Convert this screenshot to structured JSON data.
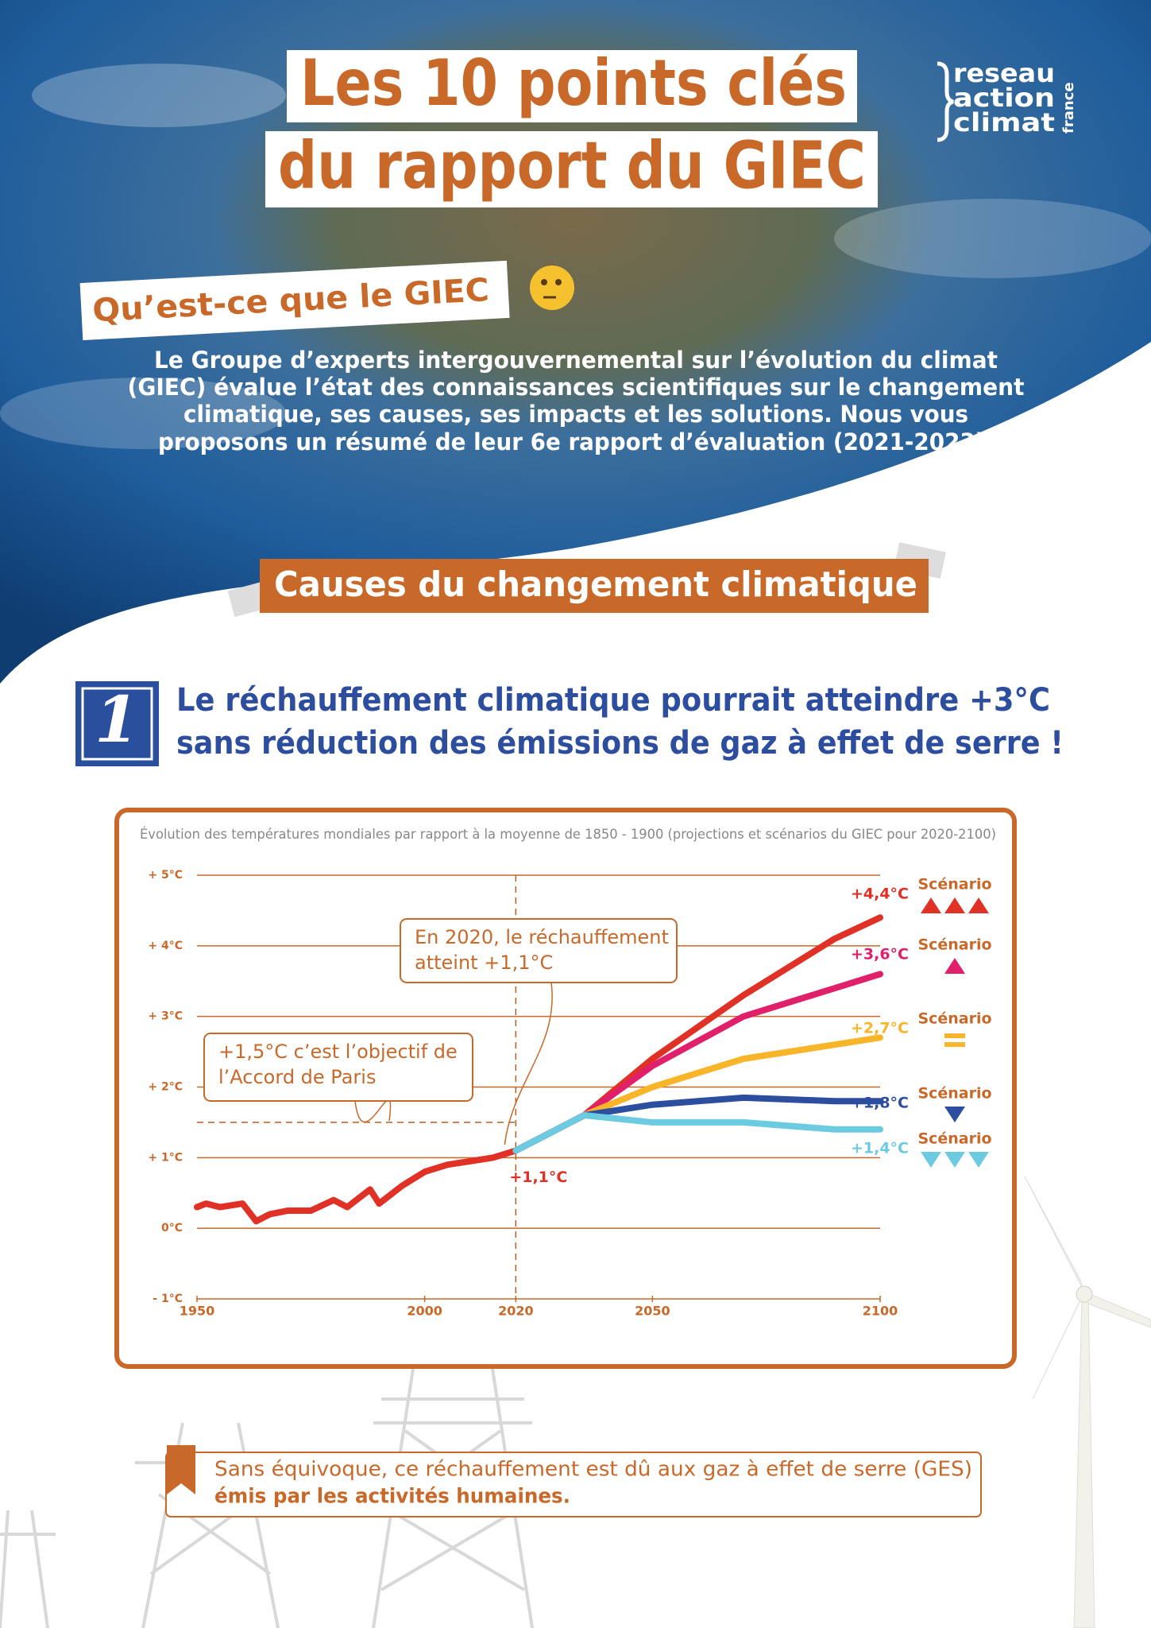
{
  "header": {
    "title_lines": [
      "Les 10 points clés",
      "du rapport du GIEC"
    ],
    "logo_lines": [
      "reseau",
      "action",
      "climat"
    ],
    "logo_side": "france"
  },
  "intro": {
    "heading": "Qu’est-ce que le GIEC",
    "lines": [
      "Le Groupe d’experts intergouvernemental sur l’évolution du climat",
      "(GIEC) évalue l’état des connaissances scientifiques sur le changement",
      "climatique, ses causes, ses impacts et les solutions. Nous vous",
      "proposons un résumé de leur 6e rapport d’évaluation (2021-2023)."
    ]
  },
  "section": {
    "heading": "Causes du changement climatique"
  },
  "point": {
    "number": "1",
    "title_lines": [
      "Le réchauffement climatique pourrait atteindre +3°C",
      "sans réduction des émissions de gaz à effet de serre !"
    ]
  },
  "chart_data": {
    "type": "line",
    "title": "Évolution des températures mondiales par rapport à la moyenne de 1850 - 1900 (projections et scénarios du GIEC pour 2020-2100)",
    "xlim": [
      1950,
      2100
    ],
    "xticks": [
      1950,
      2000,
      2020,
      2050,
      2100
    ],
    "ylim": [
      -1,
      5
    ],
    "yticks": [
      {
        "value": -1,
        "label": "- 1°C"
      },
      {
        "value": 0,
        "label": "0°C"
      },
      {
        "value": 1,
        "label": "+ 1°C"
      },
      {
        "value": 2,
        "label": "+ 2°C"
      },
      {
        "value": 3,
        "label": "+ 3°C"
      },
      {
        "value": 4,
        "label": "+ 4°C"
      },
      {
        "value": 5,
        "label": "+ 5°C"
      }
    ],
    "grid": true,
    "grid_color": "#c8692a",
    "reference_lines": {
      "x": 2020,
      "y": 1.5
    },
    "annotations": [
      {
        "lines": [
          "En 2020, le réchauffement",
          "atteint +1,1°C"
        ]
      },
      {
        "lines": [
          "+1,5°C c’est l’objectif de",
          "l’Accord de Paris"
        ]
      }
    ],
    "series": [
      {
        "color": "#e03127",
        "x": [
          1950,
          1952,
          1955,
          1960,
          1963,
          1966,
          1970,
          1975,
          1980,
          1983,
          1988,
          1990,
          1995,
          2000,
          2005,
          2010,
          2015,
          2020
        ],
        "values": [
          0.3,
          0.35,
          0.3,
          0.35,
          0.1,
          0.2,
          0.25,
          0.25,
          0.4,
          0.3,
          0.55,
          0.35,
          0.6,
          0.8,
          0.9,
          0.95,
          1.0,
          1.1
        ],
        "value_labels": [
          null,
          null,
          null,
          null,
          null,
          null,
          null,
          null,
          null,
          null,
          null,
          null,
          null,
          null,
          null,
          null,
          null,
          "+1,1°C"
        ]
      },
      {
        "name": "Scénario",
        "color": "#e03127",
        "x": [
          2020,
          2035,
          2050,
          2070,
          2090,
          2100
        ],
        "values": [
          1.1,
          1.6,
          2.4,
          3.3,
          4.1,
          4.4
        ],
        "value_labels": [
          null,
          null,
          null,
          null,
          null,
          "+4,4°C"
        ]
      },
      {
        "name": "Scénario",
        "color": "#e0206a",
        "x": [
          2020,
          2035,
          2050,
          2070,
          2090,
          2100
        ],
        "values": [
          1.1,
          1.6,
          2.3,
          3.0,
          3.4,
          3.6
        ],
        "value_labels": [
          null,
          null,
          null,
          null,
          null,
          "+3,6°C"
        ]
      },
      {
        "name": "Scénario",
        "color": "#f9b52a",
        "x": [
          2020,
          2035,
          2050,
          2070,
          2090,
          2100
        ],
        "values": [
          1.1,
          1.6,
          2.0,
          2.4,
          2.6,
          2.7
        ],
        "value_labels": [
          null,
          null,
          null,
          null,
          null,
          "+2,7°C"
        ]
      },
      {
        "name": "Scénario",
        "color": "#2d4d9e",
        "x": [
          2020,
          2035,
          2050,
          2070,
          2090,
          2100
        ],
        "values": [
          1.1,
          1.6,
          1.75,
          1.85,
          1.8,
          1.8
        ],
        "value_labels": [
          null,
          null,
          null,
          null,
          null,
          "+1,8°C"
        ]
      },
      {
        "name": "Scénario",
        "color": "#6ccbe0",
        "x": [
          2020,
          2035,
          2050,
          2070,
          2090,
          2100
        ],
        "values": [
          1.1,
          1.6,
          1.5,
          1.5,
          1.4,
          1.4
        ],
        "value_labels": [
          null,
          null,
          null,
          null,
          null,
          "+1,4°C"
        ]
      }
    ]
  },
  "note": {
    "lines": [
      "Sans équivoque, ce réchauffement est dû aux gaz à effet de serre (GES)",
      "émis par les activités humaines."
    ]
  }
}
